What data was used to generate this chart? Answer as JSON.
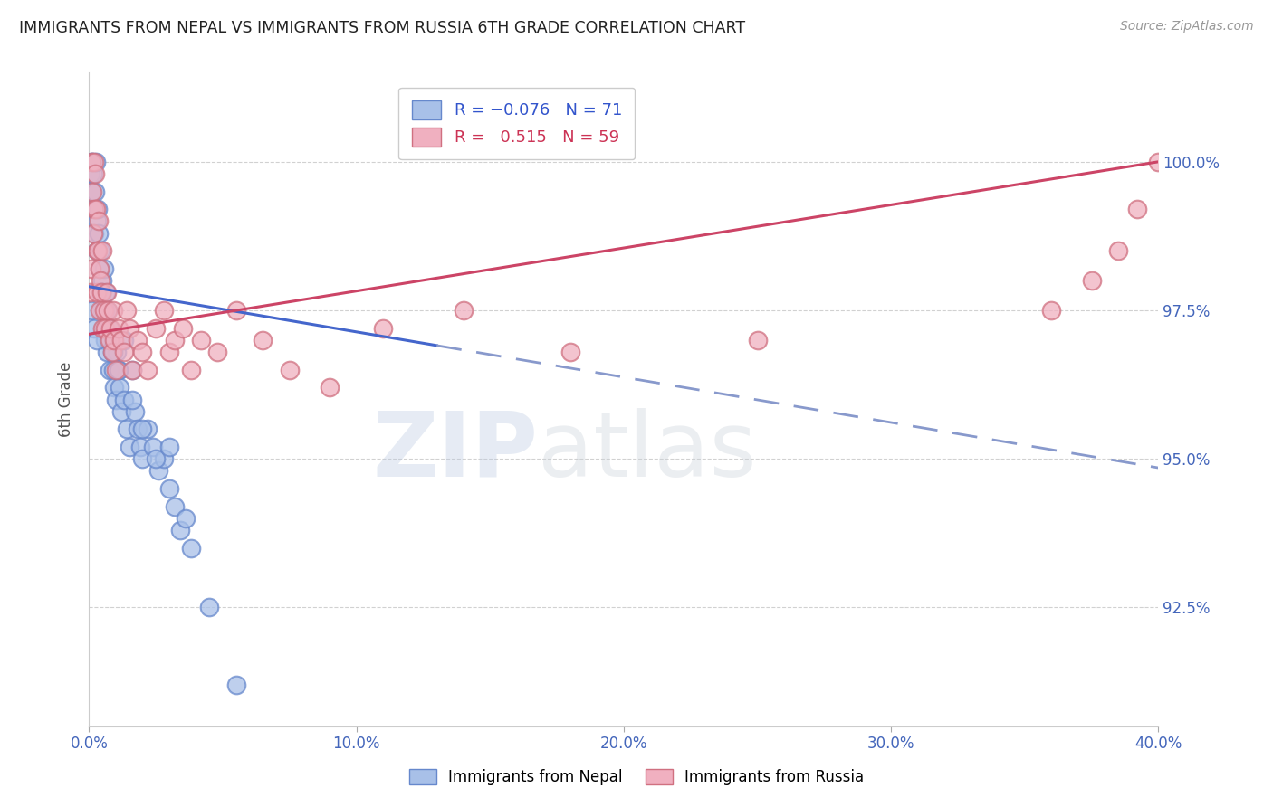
{
  "title": "IMMIGRANTS FROM NEPAL VS IMMIGRANTS FROM RUSSIA 6TH GRADE CORRELATION CHART",
  "source": "Source: ZipAtlas.com",
  "ylabel": "6th Grade",
  "xlim": [
    0.0,
    40.0
  ],
  "ylim": [
    90.5,
    101.5
  ],
  "yticks": [
    92.5,
    95.0,
    97.5,
    100.0
  ],
  "ytick_labels": [
    "92.5%",
    "95.0%",
    "97.5%",
    "100.0%"
  ],
  "xticks": [
    0.0,
    10.0,
    20.0,
    30.0,
    40.0
  ],
  "xtick_labels": [
    "0.0%",
    "10.0%",
    "20.0%",
    "30.0%",
    "40.0%"
  ],
  "nepal_color": "#a8c0e8",
  "nepal_edge_color": "#6688cc",
  "russia_color": "#f0b0c0",
  "russia_edge_color": "#d07080",
  "nepal_R": -0.076,
  "nepal_N": 71,
  "russia_R": 0.515,
  "russia_N": 59,
  "watermark": "ZIPatlas",
  "title_color": "#222222",
  "tick_color": "#4466bb",
  "grid_color": "#cccccc",
  "nepal_trend_x0": 0.0,
  "nepal_trend_x1": 40.0,
  "nepal_trend_y0": 97.9,
  "nepal_trend_y1": 94.85,
  "nepal_solid_end_x": 13.0,
  "russia_trend_x0": 0.0,
  "russia_trend_x1": 40.0,
  "russia_trend_y0": 97.1,
  "russia_trend_y1": 100.0,
  "nepal_scatter_x": [
    0.05,
    0.08,
    0.1,
    0.12,
    0.15,
    0.18,
    0.2,
    0.22,
    0.25,
    0.28,
    0.3,
    0.32,
    0.35,
    0.38,
    0.4,
    0.42,
    0.45,
    0.48,
    0.5,
    0.52,
    0.55,
    0.58,
    0.6,
    0.62,
    0.65,
    0.68,
    0.7,
    0.72,
    0.75,
    0.78,
    0.8,
    0.85,
    0.9,
    0.95,
    1.0,
    1.05,
    1.1,
    1.15,
    1.2,
    1.3,
    1.4,
    1.5,
    1.6,
    1.7,
    1.8,
    1.9,
    2.0,
    2.2,
    2.4,
    2.6,
    2.8,
    3.0,
    3.2,
    3.4,
    3.6,
    0.1,
    0.2,
    0.3,
    0.45,
    0.6,
    0.75,
    0.9,
    1.1,
    1.3,
    1.6,
    2.0,
    2.5,
    3.0,
    3.8,
    4.5,
    5.5
  ],
  "nepal_scatter_y": [
    99.8,
    100.0,
    99.5,
    100.0,
    99.8,
    99.2,
    98.8,
    99.5,
    100.0,
    99.0,
    98.5,
    99.2,
    98.8,
    98.2,
    97.8,
    98.5,
    97.5,
    98.0,
    97.8,
    97.2,
    98.2,
    97.5,
    97.0,
    97.8,
    97.2,
    96.8,
    97.5,
    97.0,
    96.5,
    97.2,
    97.0,
    96.8,
    96.5,
    96.2,
    96.0,
    96.8,
    96.5,
    96.2,
    95.8,
    96.0,
    95.5,
    95.2,
    96.5,
    95.8,
    95.5,
    95.2,
    95.0,
    95.5,
    95.2,
    94.8,
    95.0,
    94.5,
    94.2,
    93.8,
    94.0,
    97.5,
    97.2,
    97.0,
    97.8,
    97.5,
    97.2,
    96.8,
    96.5,
    97.0,
    96.0,
    95.5,
    95.0,
    95.2,
    93.5,
    92.5,
    91.2
  ],
  "russia_scatter_x": [
    0.05,
    0.08,
    0.1,
    0.12,
    0.15,
    0.18,
    0.2,
    0.22,
    0.25,
    0.28,
    0.3,
    0.32,
    0.35,
    0.38,
    0.4,
    0.42,
    0.45,
    0.48,
    0.5,
    0.55,
    0.6,
    0.65,
    0.7,
    0.75,
    0.8,
    0.85,
    0.9,
    0.95,
    1.0,
    1.1,
    1.2,
    1.3,
    1.4,
    1.5,
    1.6,
    1.8,
    2.0,
    2.2,
    2.5,
    2.8,
    3.0,
    3.2,
    3.5,
    3.8,
    4.2,
    4.8,
    5.5,
    6.5,
    7.5,
    9.0,
    11.0,
    14.0,
    18.0,
    25.0,
    36.0,
    37.5,
    38.5,
    39.2,
    40.0
  ],
  "russia_scatter_y": [
    97.8,
    98.2,
    100.0,
    99.5,
    98.8,
    99.2,
    100.0,
    99.8,
    99.2,
    98.5,
    97.8,
    98.5,
    99.0,
    98.2,
    97.5,
    98.0,
    97.8,
    97.2,
    98.5,
    97.5,
    97.2,
    97.8,
    97.5,
    97.0,
    97.2,
    96.8,
    97.5,
    97.0,
    96.5,
    97.2,
    97.0,
    96.8,
    97.5,
    97.2,
    96.5,
    97.0,
    96.8,
    96.5,
    97.2,
    97.5,
    96.8,
    97.0,
    97.2,
    96.5,
    97.0,
    96.8,
    97.5,
    97.0,
    96.5,
    96.2,
    97.2,
    97.5,
    96.8,
    97.0,
    97.5,
    98.0,
    98.5,
    99.2,
    100.0
  ],
  "legend_R_nepal_color": "#3355cc",
  "legend_R_russia_color": "#cc3355",
  "nepal_line_color": "#4466cc",
  "nepal_dash_color": "#8899cc",
  "russia_line_color": "#cc4466"
}
